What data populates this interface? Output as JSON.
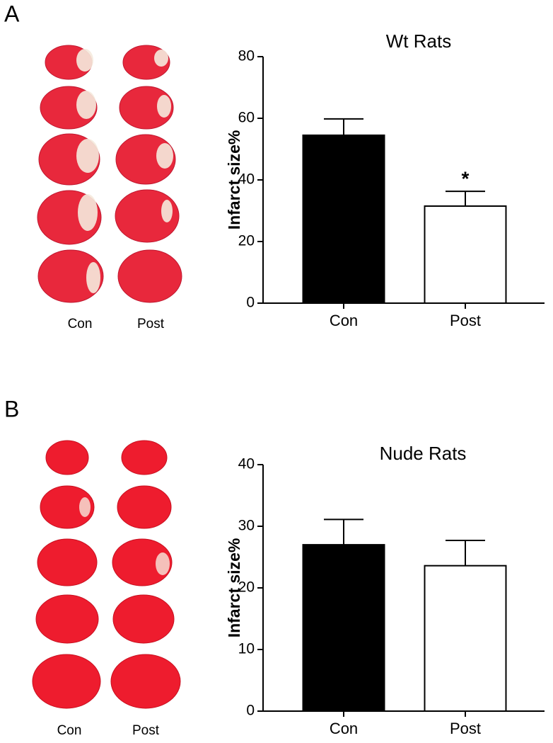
{
  "chart_data": [
    {
      "type": "bar",
      "panel": "A",
      "title": "Wt Rats",
      "ylabel": "Infarct size%",
      "categories": [
        "Con",
        "Post"
      ],
      "values": [
        54.5,
        31.5
      ],
      "errors": [
        5.3,
        4.8
      ],
      "colors": [
        "#000000",
        "#ffffff"
      ],
      "ylim": [
        0,
        80
      ],
      "yticks": [
        0,
        20,
        40,
        60,
        80
      ],
      "annotations": [
        {
          "text": "*",
          "category": "Post"
        }
      ],
      "image_labels": [
        "Con",
        "Post"
      ]
    },
    {
      "type": "bar",
      "panel": "B",
      "title": "Nude Rats",
      "ylabel": "Infarct size%",
      "categories": [
        "Con",
        "Post"
      ],
      "values": [
        27.0,
        23.6
      ],
      "errors": [
        4.1,
        4.1
      ],
      "colors": [
        "#000000",
        "#ffffff"
      ],
      "ylim": [
        0,
        40
      ],
      "yticks": [
        0,
        10,
        20,
        30,
        40
      ],
      "annotations": [],
      "image_labels": [
        "Con",
        "Post"
      ]
    }
  ]
}
